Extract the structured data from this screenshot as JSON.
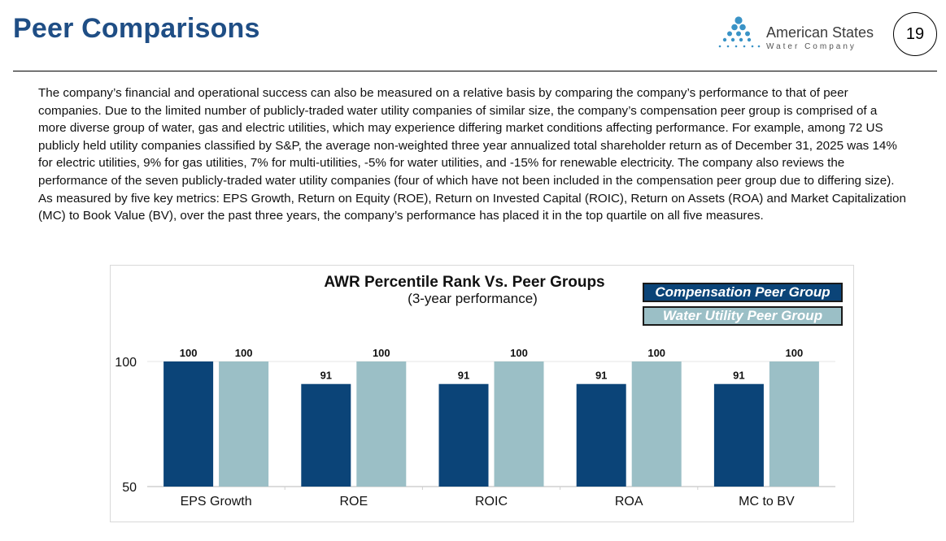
{
  "header": {
    "title": "Peer Comparisons",
    "logo": {
      "icon": "water-drops-triangle-icon",
      "name": "American States",
      "subtitle": "Water Company"
    },
    "page_number": "19"
  },
  "body_text": "The company’s financial and operational success can also be measured on a relative basis by comparing the company’s performance to that of peer companies. Due to the limited number of publicly-traded water utility companies of similar size, the company’s compensation peer group is comprised of a more diverse group of water, gas and electric utilities, which may experience differing market conditions affecting performance. For example, among 72 US publicly held utility companies classified by S&P, the average non-weighted three year annualized total shareholder return as of December 31, 2025 was 14% for electric utilities, 9% for gas utilities, 7% for multi-utilities, -5% for water utilities, and -15% for renewable electricity. The company also reviews the performance of the seven publicly-traded water utility companies (four of which have not been included in the compensation peer group due to differing size). As measured by five key metrics: EPS Growth, Return on Equity (ROE), Return on Invested Capital (ROIC), Return on Assets (ROA) and Market Capitalization (MC) to Book Value (BV), over the past three years, the company’s performance has placed it in the top quartile on all five measures.",
  "colors": {
    "title": "#1f4e85",
    "compensation": "#0b4478",
    "water": "#9bbfc6",
    "logo_drop": "#3a93c6"
  },
  "chart_data": {
    "type": "bar",
    "title": "AWR Percentile Rank Vs. Peer Groups",
    "subtitle": "(3-year performance)",
    "xlabel": "",
    "ylabel": "",
    "categories": [
      "EPS Growth",
      "ROE",
      "ROIC",
      "ROA",
      "MC to BV"
    ],
    "series": [
      {
        "name": "Compensation Peer Group",
        "values": [
          100,
          91,
          91,
          91,
          91
        ]
      },
      {
        "name": "Water Utility Peer Group",
        "values": [
          100,
          100,
          100,
          100,
          100
        ]
      }
    ],
    "ylim": [
      50,
      100
    ],
    "yticks": [
      "50",
      "100"
    ],
    "legend_position": "top-right",
    "grid": false
  }
}
